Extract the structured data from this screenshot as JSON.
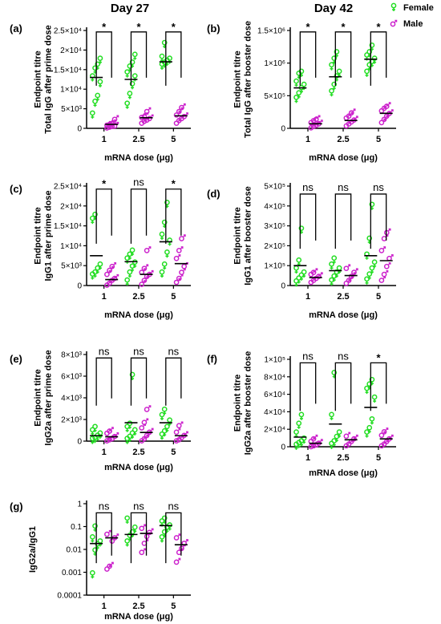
{
  "figure": {
    "day_labels": [
      "Day 27",
      "Day 42"
    ],
    "legend": [
      {
        "label": "Female",
        "color": "#22dd22",
        "symbol": "female-symbol-icon"
      },
      {
        "label": "Male",
        "color": "#cc22cc",
        "symbol": "male-symbol-icon"
      }
    ]
  },
  "chart_data": [
    {
      "id": "a",
      "panel_label": "(a)",
      "type": "scatter",
      "ylabel_lines": [
        "Endpoint titre",
        "Total IgG after prime dose"
      ],
      "xlabel": "mRNA dose (μg)",
      "categories": [
        "1",
        "2.5",
        "5"
      ],
      "ylim": [
        0,
        25000
      ],
      "yscale": "linear",
      "ytick_values": [
        0,
        5000,
        10000,
        15000,
        20000,
        25000
      ],
      "ytick_labels": [
        "0",
        "5×10³",
        "1×10⁴",
        "1.5×10⁴",
        "2×10⁴",
        "2.5×10⁴"
      ],
      "series": [
        {
          "name": "Female",
          "color": "#22dd22",
          "means": [
            13000,
            12500,
            17000
          ],
          "points": [
            [
              3500,
              6500,
              8000,
              11500,
              13000,
              15000,
              16000,
              17500
            ],
            [
              6000,
              8500,
              11000,
              13000,
              14000,
              15500,
              16500,
              18500
            ],
            [
              16000,
              16500,
              17000,
              17500,
              18000,
              21500
            ]
          ]
        },
        {
          "name": "Male",
          "color": "#cc22cc",
          "means": [
            1000,
            2700,
            3200
          ],
          "points": [
            [
              300,
              500,
              700,
              800,
              1000,
              1200,
              1400,
              2500
            ],
            [
              1500,
              2000,
              2300,
              2700,
              3000,
              3200,
              4500
            ],
            [
              1500,
              2200,
              2700,
              3200,
              3600,
              4500,
              5500
            ]
          ]
        }
      ],
      "significance": [
        "*",
        "*",
        "*"
      ]
    },
    {
      "id": "b",
      "panel_label": "(b)",
      "type": "scatter",
      "ylabel_lines": [
        "Endpoint titre",
        "Total IgG after booster dose"
      ],
      "xlabel": "mRNA dose (μg)",
      "categories": [
        "1",
        "2.5",
        "5"
      ],
      "ylim": [
        0,
        1500000
      ],
      "yscale": "linear",
      "ytick_values": [
        0,
        500000,
        1000000,
        1500000
      ],
      "ytick_labels": [
        "0",
        "5×10⁵",
        "1×10⁶",
        "1.5×10⁶"
      ],
      "series": [
        {
          "name": "Female",
          "color": "#22dd22",
          "means": [
            620000,
            790000,
            1060000
          ],
          "points": [
            [
              450000,
              520000,
              600000,
              650000,
              700000,
              820000,
              850000
            ],
            [
              550000,
              650000,
              780000,
              850000,
              950000,
              1050000,
              1150000
            ],
            [
              850000,
              950000,
              1000000,
              1050000,
              1100000,
              1150000,
              1250000
            ]
          ]
        },
        {
          "name": "Male",
          "color": "#cc22cc",
          "means": [
            70000,
            120000,
            230000
          ],
          "points": [
            [
              20000,
              40000,
              60000,
              80000,
              100000,
              130000,
              150000
            ],
            [
              50000,
              80000,
              110000,
              140000,
              170000,
              200000,
              250000
            ],
            [
              100000,
              150000,
              200000,
              240000,
              280000,
              320000,
              350000
            ]
          ]
        }
      ],
      "significance": [
        "*",
        "*",
        "*"
      ]
    },
    {
      "id": "c",
      "panel_label": "(c)",
      "type": "scatter",
      "ylabel_lines": [
        "Endpoint titre",
        "IgG1 after prime dose"
      ],
      "xlabel": "mRNA dose (μg)",
      "categories": [
        "1",
        "2.5",
        "5"
      ],
      "ylim": [
        0,
        25000
      ],
      "yscale": "linear",
      "ytick_values": [
        0,
        5000,
        10000,
        15000,
        20000,
        25000
      ],
      "ytick_labels": [
        "0",
        "5×10³",
        "1×10⁴",
        "1.5×10⁴",
        "2×10⁴",
        "2.5×10⁴"
      ],
      "series": [
        {
          "name": "Female",
          "color": "#22dd22",
          "means": [
            7500,
            6000,
            11000
          ],
          "points": [
            [
              2500,
              3000,
              4000,
              5000,
              16500,
              17500
            ],
            [
              1000,
              3000,
              4500,
              5500,
              6500,
              7500,
              8500
            ],
            [
              3000,
              5000,
              8000,
              11000,
              12500,
              15500,
              20500
            ]
          ]
        },
        {
          "name": "Male",
          "color": "#cc22cc",
          "means": [
            1500,
            2800,
            5500
          ],
          "points": [
            [
              300,
              800,
              1500,
              2000,
              3000,
              4000,
              5000
            ],
            [
              500,
              1500,
              2500,
              3000,
              3500,
              4500,
              9000
            ],
            [
              1000,
              2000,
              3500,
              5000,
              7000,
              9000,
              12000
            ]
          ]
        }
      ],
      "significance": [
        "*",
        "ns",
        "*"
      ]
    },
    {
      "id": "d",
      "panel_label": "(d)",
      "type": "scatter",
      "ylabel_lines": [
        "Endpoint titre",
        "IgG1 after booster dose"
      ],
      "xlabel": "mRNA dose (μg)",
      "categories": [
        "1",
        "2.5",
        "5"
      ],
      "ylim": [
        0,
        500000
      ],
      "yscale": "linear",
      "ytick_values": [
        0,
        100000,
        200000,
        300000,
        400000,
        500000
      ],
      "ytick_labels": [
        "0",
        "1×10⁵",
        "2×10⁵",
        "3×10⁵",
        "4×10⁵",
        "5×10⁵"
      ],
      "series": [
        {
          "name": "Female",
          "color": "#22dd22",
          "means": [
            100000,
            75000,
            150000
          ],
          "points": [
            [
              15000,
              30000,
              45000,
              60000,
              80000,
              120000,
              280000
            ],
            [
              20000,
              40000,
              60000,
              80000,
              100000,
              130000
            ],
            [
              25000,
              50000,
              80000,
              110000,
              150000,
              230000,
              400000
            ]
          ]
        },
        {
          "name": "Male",
          "color": "#cc22cc",
          "means": [
            40000,
            50000,
            125000
          ],
          "points": [
            [
              20000,
              30000,
              40000,
              50000,
              60000,
              70000
            ],
            [
              15000,
              30000,
              50000,
              70000,
              90000
            ],
            [
              30000,
              60000,
              100000,
              140000,
              180000,
              240000,
              270000
            ]
          ]
        }
      ],
      "significance": [
        "ns",
        "ns",
        "ns"
      ]
    },
    {
      "id": "e",
      "panel_label": "(e)",
      "type": "scatter",
      "ylabel_lines": [
        "Endpoint titre",
        "IgG2a after prime dose"
      ],
      "xlabel": "mRNA dose (μg)",
      "categories": [
        "1",
        "2.5",
        "5"
      ],
      "ylim": [
        0,
        8000
      ],
      "yscale": "linear",
      "ytick_values": [
        0,
        2000,
        4000,
        6000,
        8000
      ],
      "ytick_labels": [
        "0",
        "2×10³",
        "4×10³",
        "6×10³",
        "8×10³"
      ],
      "series": [
        {
          "name": "Female",
          "color": "#22dd22",
          "means": [
            500,
            1700,
            1700
          ],
          "points": [
            [
              100,
              200,
              400,
              600,
              900,
              1200
            ],
            [
              100,
              300,
              600,
              900,
              1200,
              1500,
              6000
            ],
            [
              500,
              800,
              1200,
              1800,
              2300,
              2800
            ]
          ]
        },
        {
          "name": "Male",
          "color": "#cc22cc",
          "means": [
            400,
            800,
            500
          ],
          "points": [
            [
              100,
              200,
              300,
              500,
              800,
              1000
            ],
            [
              100,
              300,
              600,
              900,
              1300,
              1800,
              3000
            ],
            [
              100,
              200,
              400,
              600,
              900,
              1500
            ]
          ]
        }
      ],
      "significance": [
        "ns",
        "ns",
        "ns"
      ]
    },
    {
      "id": "f",
      "panel_label": "(f)",
      "type": "scatter",
      "ylabel_lines": [
        "Endpoint titre",
        "IgG2a after booster dose"
      ],
      "xlabel": "mRNA dose (μg)",
      "categories": [
        "1",
        "2.5",
        "5"
      ],
      "ylim": [
        0,
        100000
      ],
      "yscale": "linear",
      "ytick_values": [
        0,
        20000,
        40000,
        60000,
        80000,
        100000
      ],
      "ytick_labels": [
        "0",
        "2×10⁴",
        "4×10⁴",
        "6×10⁴",
        "8×10⁴",
        "1×10⁵"
      ],
      "series": [
        {
          "name": "Female",
          "color": "#22dd22",
          "means": [
            11000,
            26000,
            45000
          ],
          "points": [
            [
              1000,
              3000,
              5000,
              8000,
              15000,
              25000,
              35000
            ],
            [
              2000,
              5000,
              10000,
              15000,
              35000,
              83000
            ],
            [
              15000,
              20000,
              30000,
              55000,
              65000,
              70000,
              75000
            ]
          ]
        },
        {
          "name": "Male",
          "color": "#cc22cc",
          "means": [
            4000,
            8000,
            9000
          ],
          "points": [
            [
              1000,
              2000,
              3000,
              5000,
              7000,
              10000
            ],
            [
              2000,
              4000,
              7000,
              10000,
              13000
            ],
            [
              2000,
              4000,
              7000,
              10000,
              14000,
              18000
            ]
          ]
        }
      ],
      "significance": [
        "ns",
        "ns",
        "*"
      ]
    },
    {
      "id": "g",
      "panel_label": "(g)",
      "type": "scatter",
      "ylabel_lines": [
        "IgG2a/IgG1"
      ],
      "xlabel": "mRNA dose (μg)",
      "categories": [
        "1",
        "2.5",
        "5"
      ],
      "ylim": [
        0.0001,
        1
      ],
      "yscale": "log",
      "ytick_values": [
        0.0001,
        0.001,
        0.01,
        0.1,
        1
      ],
      "ytick_labels": [
        "0.0001",
        "0.001",
        "0.01",
        "0.1",
        "1"
      ],
      "series": [
        {
          "name": "Female",
          "color": "#22dd22",
          "means": [
            0.018,
            0.045,
            0.11
          ],
          "points": [
            [
              0.0008,
              0.008,
              0.015,
              0.02,
              0.03,
              0.09
            ],
            [
              0.02,
              0.035,
              0.05,
              0.08,
              0.2
            ],
            [
              0.03,
              0.05,
              0.08,
              0.1,
              0.15,
              0.2
            ]
          ]
        },
        {
          "name": "Male",
          "color": "#cc22cc",
          "means": [
            0.032,
            0.05,
            0.016
          ],
          "points": [
            [
              0.0015,
              0.002,
              0.025,
              0.035,
              0.05
            ],
            [
              0.008,
              0.02,
              0.04,
              0.06,
              0.09
            ],
            [
              0.003,
              0.008,
              0.012,
              0.02,
              0.035
            ]
          ]
        }
      ],
      "significance": [
        "ns",
        "ns",
        "ns"
      ]
    }
  ]
}
